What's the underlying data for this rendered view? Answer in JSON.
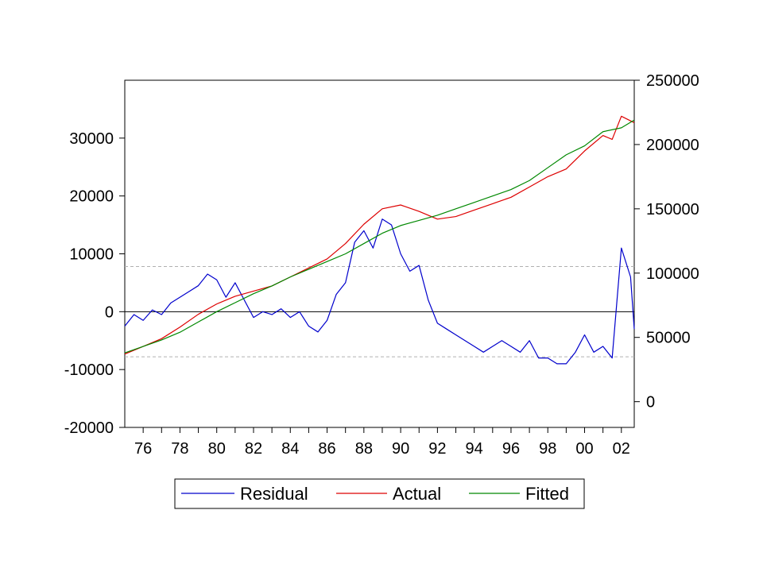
{
  "chart_data": {
    "type": "line",
    "title": "",
    "xlabel": "",
    "ylabel_left": "",
    "ylabel_right": "",
    "x_tick_labels": [
      "76",
      "78",
      "80",
      "82",
      "84",
      "86",
      "88",
      "90",
      "92",
      "94",
      "96",
      "98",
      "00",
      "02"
    ],
    "x_range": [
      1975.0,
      2002.7
    ],
    "left_axis": {
      "range": [
        -20000,
        40000
      ],
      "ticks": [
        -20000,
        -10000,
        0,
        10000,
        20000,
        30000
      ],
      "tick_labels": [
        "-20000",
        "-10000",
        "0",
        "10000",
        "20000",
        "30000"
      ]
    },
    "right_axis": {
      "range": [
        -20000,
        250000
      ],
      "ticks": [
        0,
        50000,
        100000,
        150000,
        200000,
        250000
      ],
      "tick_labels": [
        "0",
        "50000",
        "100000",
        "150000",
        "200000",
        "250000"
      ]
    },
    "reference_lines_left": [
      7800,
      -7800
    ],
    "series": [
      {
        "name": "Residual",
        "axis": "left",
        "color": "#0000cc",
        "points": [
          [
            1975.0,
            -2500
          ],
          [
            1975.5,
            -500
          ],
          [
            1976.0,
            -1500
          ],
          [
            1976.5,
            300
          ],
          [
            1977.0,
            -500
          ],
          [
            1977.5,
            1500
          ],
          [
            1978.0,
            2500
          ],
          [
            1978.5,
            3500
          ],
          [
            1979.0,
            4500
          ],
          [
            1979.5,
            6500
          ],
          [
            1980.0,
            5500
          ],
          [
            1980.5,
            2500
          ],
          [
            1981.0,
            5000
          ],
          [
            1981.5,
            2000
          ],
          [
            1982.0,
            -1000
          ],
          [
            1982.5,
            0
          ],
          [
            1983.0,
            -500
          ],
          [
            1983.5,
            500
          ],
          [
            1984.0,
            -1000
          ],
          [
            1984.5,
            0
          ],
          [
            1985.0,
            -2500
          ],
          [
            1985.5,
            -3500
          ],
          [
            1986.0,
            -1500
          ],
          [
            1986.5,
            3000
          ],
          [
            1987.0,
            5000
          ],
          [
            1987.5,
            12000
          ],
          [
            1988.0,
            14000
          ],
          [
            1988.5,
            11000
          ],
          [
            1989.0,
            16000
          ],
          [
            1989.5,
            15000
          ],
          [
            1990.0,
            10000
          ],
          [
            1990.5,
            7000
          ],
          [
            1991.0,
            8000
          ],
          [
            1991.5,
            2000
          ],
          [
            1992.0,
            -2000
          ],
          [
            1992.5,
            -3000
          ],
          [
            1993.0,
            -4000
          ],
          [
            1993.5,
            -5000
          ],
          [
            1994.0,
            -6000
          ],
          [
            1994.5,
            -7000
          ],
          [
            1995.0,
            -6000
          ],
          [
            1995.5,
            -5000
          ],
          [
            1996.0,
            -6000
          ],
          [
            1996.5,
            -7000
          ],
          [
            1997.0,
            -5000
          ],
          [
            1997.5,
            -8000
          ],
          [
            1998.0,
            -8000
          ],
          [
            1998.5,
            -9000
          ],
          [
            1999.0,
            -9000
          ],
          [
            1999.5,
            -7000
          ],
          [
            2000.0,
            -4000
          ],
          [
            2000.5,
            -7000
          ],
          [
            2001.0,
            -6000
          ],
          [
            2001.5,
            -8000
          ],
          [
            2002.0,
            11000
          ],
          [
            2002.5,
            6000
          ],
          [
            2002.7,
            -3000
          ]
        ]
      },
      {
        "name": "Actual",
        "axis": "right",
        "color": "#dd0000",
        "points": [
          [
            1975.0,
            37000
          ],
          [
            1976.0,
            43000
          ],
          [
            1977.0,
            49000
          ],
          [
            1978.0,
            58000
          ],
          [
            1979.0,
            68000
          ],
          [
            1980.0,
            76000
          ],
          [
            1981.0,
            82000
          ],
          [
            1982.0,
            86000
          ],
          [
            1983.0,
            90000
          ],
          [
            1984.0,
            97000
          ],
          [
            1985.0,
            104000
          ],
          [
            1986.0,
            111000
          ],
          [
            1987.0,
            123000
          ],
          [
            1988.0,
            138000
          ],
          [
            1989.0,
            150000
          ],
          [
            1990.0,
            153000
          ],
          [
            1991.0,
            148000
          ],
          [
            1992.0,
            142000
          ],
          [
            1993.0,
            144000
          ],
          [
            1994.0,
            149000
          ],
          [
            1995.0,
            154000
          ],
          [
            1996.0,
            159000
          ],
          [
            1997.0,
            167000
          ],
          [
            1998.0,
            175000
          ],
          [
            1999.0,
            181000
          ],
          [
            2000.0,
            195000
          ],
          [
            2001.0,
            207000
          ],
          [
            2001.5,
            204000
          ],
          [
            2002.0,
            222000
          ],
          [
            2002.7,
            217000
          ]
        ]
      },
      {
        "name": "Fitted",
        "axis": "right",
        "color": "#008800",
        "points": [
          [
            1975.0,
            38000
          ],
          [
            1976.0,
            43000
          ],
          [
            1977.0,
            48000
          ],
          [
            1978.0,
            54000
          ],
          [
            1979.0,
            62000
          ],
          [
            1980.0,
            70000
          ],
          [
            1981.0,
            77000
          ],
          [
            1982.0,
            84000
          ],
          [
            1983.0,
            90000
          ],
          [
            1984.0,
            97000
          ],
          [
            1985.0,
            103000
          ],
          [
            1986.0,
            109000
          ],
          [
            1987.0,
            115000
          ],
          [
            1988.0,
            123000
          ],
          [
            1989.0,
            131000
          ],
          [
            1990.0,
            137000
          ],
          [
            1991.0,
            141000
          ],
          [
            1992.0,
            145000
          ],
          [
            1993.0,
            150000
          ],
          [
            1994.0,
            155000
          ],
          [
            1995.0,
            160000
          ],
          [
            1996.0,
            165000
          ],
          [
            1997.0,
            172000
          ],
          [
            1998.0,
            182000
          ],
          [
            1999.0,
            192000
          ],
          [
            2000.0,
            199000
          ],
          [
            2001.0,
            210000
          ],
          [
            2002.0,
            213000
          ],
          [
            2002.7,
            219000
          ]
        ]
      }
    ],
    "legend": {
      "placement": "bottom",
      "entries": [
        "Residual",
        "Actual",
        "Fitted"
      ]
    },
    "grid": false
  }
}
